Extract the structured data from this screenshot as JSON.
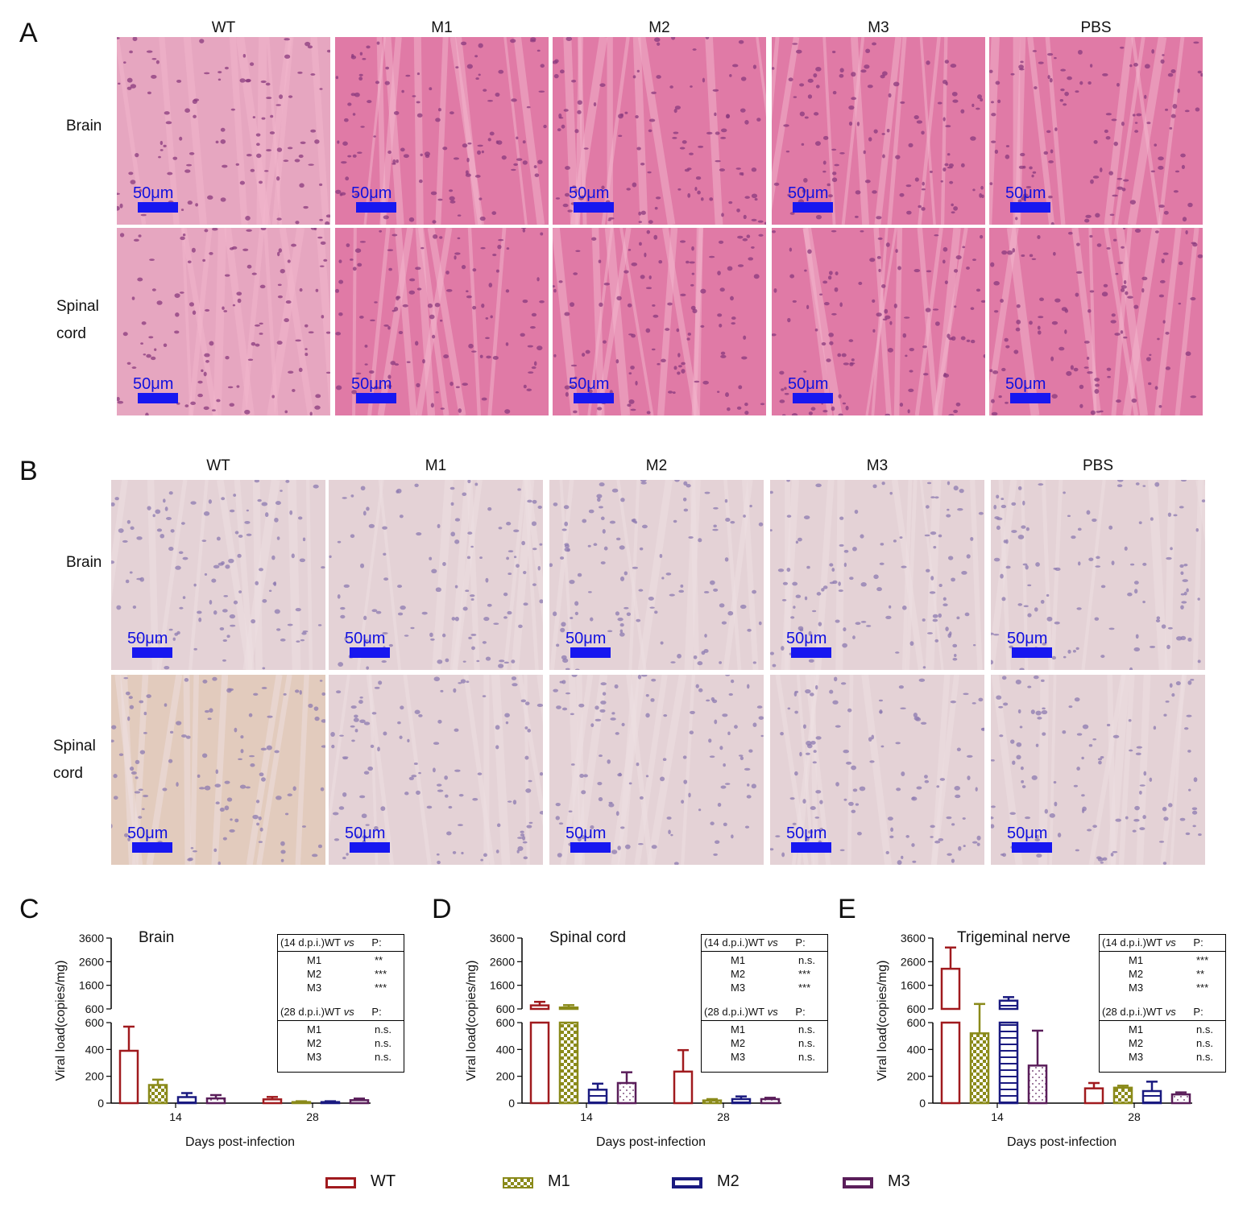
{
  "panel_a": {
    "letter": "A",
    "columns": [
      "WT",
      "M1",
      "M2",
      "M3",
      "PBS"
    ],
    "rows": [
      {
        "label": [
          "Brain"
        ]
      },
      {
        "label": [
          "Spinal",
          "cord"
        ]
      }
    ],
    "stain": "he",
    "scale_bar": "50μm"
  },
  "panel_b": {
    "letter": "B",
    "columns": [
      "WT",
      "M1",
      "M2",
      "M3",
      "PBS"
    ],
    "rows": [
      {
        "label": [
          "Brain"
        ]
      },
      {
        "label": [
          "Spinal",
          "cord"
        ]
      }
    ],
    "stain": "ihc",
    "scale_bar": "50μm"
  },
  "chart_data": [
    {
      "type": "bar",
      "letter": "C",
      "title": "Brain",
      "xlabel": "Days post-infection",
      "ylabel": "Viral load(copies/mg)",
      "categories": [
        "14",
        "28"
      ],
      "axis_break": {
        "lower_ylim": [
          0,
          600
        ],
        "lower_ticks": [
          0,
          200,
          400,
          600
        ],
        "upper_ylim": [
          600,
          3600
        ],
        "upper_ticks": [
          600,
          1600,
          2600,
          3600
        ]
      },
      "series": [
        {
          "name": "WT",
          "values": [
            390,
            28
          ],
          "errors": [
            180,
            18
          ]
        },
        {
          "name": "M1",
          "values": [
            135,
            8
          ],
          "errors": [
            40,
            6
          ]
        },
        {
          "name": "M2",
          "values": [
            45,
            8
          ],
          "errors": [
            30,
            6
          ]
        },
        {
          "name": "M3",
          "values": [
            35,
            22
          ],
          "errors": [
            25,
            12
          ]
        }
      ],
      "stats": {
        "header14": "(14 d.p.i.)WT",
        "vs": "vs",
        "p": "P:",
        "rows14": [
          [
            "M1",
            "**"
          ],
          [
            "M2",
            "***"
          ],
          [
            "M3",
            "***"
          ]
        ],
        "header28": "(28 d.p.i.)WT",
        "rows28": [
          [
            "M1",
            "n.s."
          ],
          [
            "M2",
            "n.s."
          ],
          [
            "M3",
            "n.s."
          ]
        ]
      }
    },
    {
      "type": "bar",
      "letter": "D",
      "title": "Spinal cord",
      "xlabel": "Days post-infection",
      "ylabel": "Viral load(copies/mg)",
      "categories": [
        "14",
        "28"
      ],
      "axis_break": {
        "lower_ylim": [
          0,
          600
        ],
        "lower_ticks": [
          0,
          200,
          400,
          600
        ],
        "upper_ylim": [
          600,
          3600
        ],
        "upper_ticks": [
          600,
          1600,
          2600,
          3600
        ]
      },
      "series": [
        {
          "name": "WT",
          "values": [
            750,
            235
          ],
          "errors": [
            150,
            160
          ]
        },
        {
          "name": "M1",
          "values": [
            660,
            20
          ],
          "errors": [
            100,
            10
          ]
        },
        {
          "name": "M2",
          "values": [
            100,
            30
          ],
          "errors": [
            45,
            20
          ]
        },
        {
          "name": "M3",
          "values": [
            150,
            30
          ],
          "errors": [
            80,
            10
          ]
        }
      ],
      "stats": {
        "header14": "(14 d.p.i.)WT",
        "vs": "vs",
        "p": "P:",
        "rows14": [
          [
            "M1",
            "n.s."
          ],
          [
            "M2",
            "***"
          ],
          [
            "M3",
            "***"
          ]
        ],
        "header28": "(28 d.p.i.)WT",
        "rows28": [
          [
            "M1",
            "n.s."
          ],
          [
            "M2",
            "n.s."
          ],
          [
            "M3",
            "n.s."
          ]
        ]
      }
    },
    {
      "type": "bar",
      "letter": "E",
      "title": "Trigeminal nerve",
      "xlabel": "Days post-infection",
      "ylabel": "Viral load(copies/mg)",
      "categories": [
        "14",
        "28"
      ],
      "axis_break": {
        "lower_ylim": [
          0,
          600
        ],
        "lower_ticks": [
          0,
          200,
          400,
          600
        ],
        "upper_ylim": [
          600,
          3600
        ],
        "upper_ticks": [
          600,
          1600,
          2600,
          3600
        ]
      },
      "series": [
        {
          "name": "WT",
          "values": [
            2300,
            110
          ],
          "errors": [
            900,
            40
          ]
        },
        {
          "name": "M1",
          "values": [
            520,
            115
          ],
          "errors": [
            290,
            15
          ]
        },
        {
          "name": "M2",
          "values": [
            950,
            90
          ],
          "errors": [
            150,
            70
          ]
        },
        {
          "name": "M3",
          "values": [
            280,
            65
          ],
          "errors": [
            260,
            15
          ]
        }
      ],
      "stats": {
        "header14": "(14 d.p.i.)WT",
        "vs": "vs",
        "p": "P:",
        "rows14": [
          [
            "M1",
            "***"
          ],
          [
            "M2",
            "**"
          ],
          [
            "M3",
            "***"
          ]
        ],
        "header28": "(28 d.p.i.)WT",
        "rows28": [
          [
            "M1",
            "n.s."
          ],
          [
            "M2",
            "n.s."
          ],
          [
            "M3",
            "n.s."
          ]
        ]
      }
    }
  ],
  "legend": [
    {
      "name": "WT",
      "color": "#a01a1e",
      "pattern": "none"
    },
    {
      "name": "M1",
      "color": "#8a8a1a",
      "pattern": "check"
    },
    {
      "name": "M2",
      "color": "#1a1a80",
      "pattern": "hline"
    },
    {
      "name": "M3",
      "color": "#5a1e5a",
      "pattern": "dot"
    }
  ]
}
